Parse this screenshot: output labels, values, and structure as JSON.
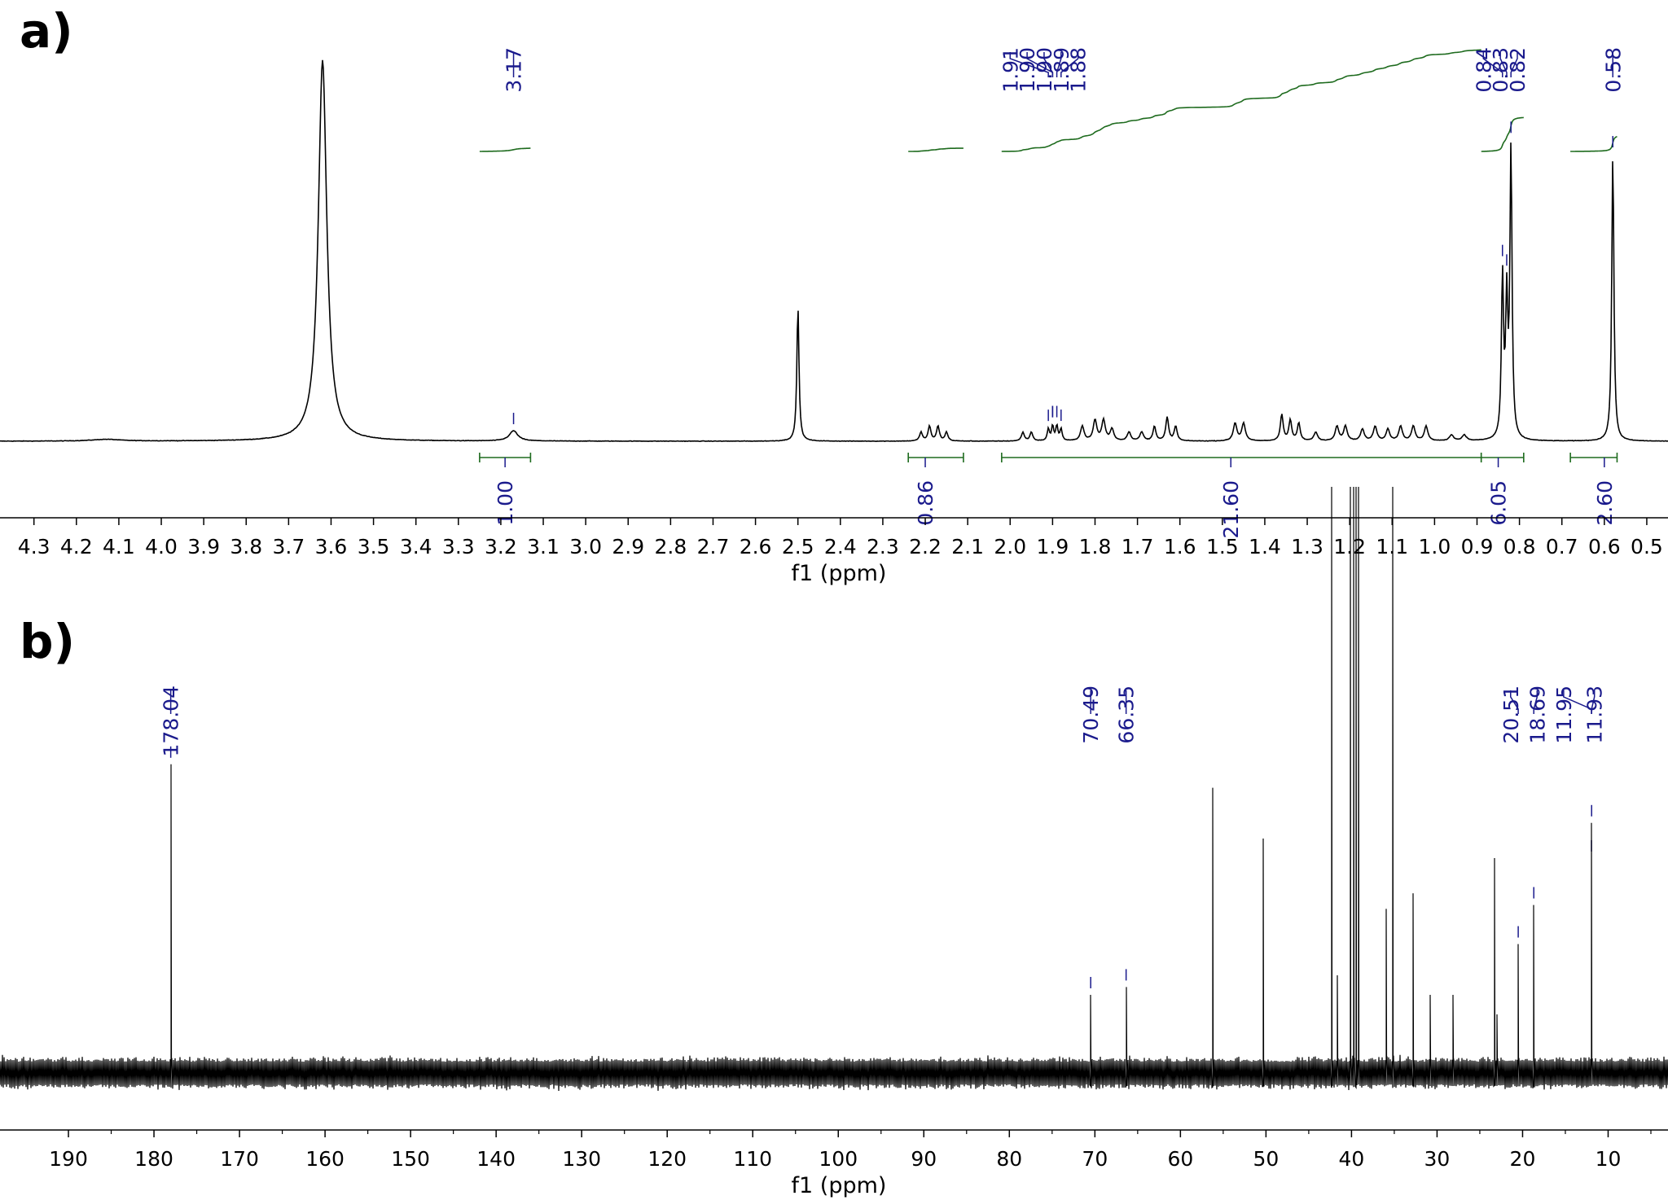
{
  "figure": {
    "colors": {
      "spectrum": "#000000",
      "peak_label": "#1a1a8c",
      "integral": "#1e6b1e"
    }
  },
  "chart_data": [
    {
      "type": "line",
      "panel_label": "a)",
      "xlabel": "f1 (ppm)",
      "ylabel": "",
      "xlim": [
        4.38,
        0.45
      ],
      "x_reversed": true,
      "ticks": [
        4.3,
        4.2,
        4.1,
        4.0,
        3.9,
        3.8,
        3.7,
        3.6,
        3.5,
        3.4,
        3.3,
        3.2,
        3.1,
        3.0,
        2.9,
        2.8,
        2.7,
        2.6,
        2.5,
        2.4,
        2.3,
        2.2,
        2.1,
        2.0,
        1.9,
        1.8,
        1.7,
        1.6,
        1.5,
        1.4,
        1.3,
        1.2,
        1.1,
        1.0,
        0.9,
        0.8,
        0.7,
        0.6,
        0.5
      ],
      "tick_labels": [
        "4.3",
        "4.2",
        "4.1",
        "4.0",
        "3.9",
        "3.8",
        "3.7",
        "3.6",
        "3.5",
        "3.4",
        "3.3",
        "3.2",
        "3.1",
        "3.0",
        "2.9",
        "2.8",
        "2.7",
        "2.6",
        "2.5",
        "2.4",
        "2.3",
        "2.2",
        "2.1",
        "2.0",
        "1.9",
        "1.8",
        "1.7",
        "1.6",
        "1.5",
        "1.4",
        "1.3",
        "1.2",
        "1.1",
        "1.0",
        "0.9",
        "0.8",
        "0.7",
        "0.6",
        "0.5"
      ],
      "peaks": [
        {
          "shift": 3.62,
          "height": 1.3,
          "width": 0.012
        },
        {
          "shift": 4.13,
          "height": 0.006,
          "width": 0.04
        },
        {
          "shift": 3.17,
          "height": 0.035,
          "width": 0.012
        },
        {
          "shift": 2.5,
          "height": 0.46,
          "width": 0.003
        },
        {
          "shift": 2.21,
          "height": 0.03,
          "width": 0.004
        },
        {
          "shift": 2.19,
          "height": 0.05,
          "width": 0.004
        },
        {
          "shift": 2.17,
          "height": 0.05,
          "width": 0.004
        },
        {
          "shift": 2.15,
          "height": 0.03,
          "width": 0.004
        },
        {
          "shift": 1.97,
          "height": 0.03,
          "width": 0.004
        },
        {
          "shift": 1.95,
          "height": 0.03,
          "width": 0.004
        },
        {
          "shift": 1.91,
          "height": 0.04,
          "width": 0.003
        },
        {
          "shift": 1.9,
          "height": 0.05,
          "width": 0.003
        },
        {
          "shift": 1.89,
          "height": 0.05,
          "width": 0.003
        },
        {
          "shift": 1.88,
          "height": 0.04,
          "width": 0.003
        },
        {
          "shift": 1.83,
          "height": 0.05,
          "width": 0.005
        },
        {
          "shift": 1.8,
          "height": 0.07,
          "width": 0.005
        },
        {
          "shift": 1.78,
          "height": 0.07,
          "width": 0.005
        },
        {
          "shift": 1.76,
          "height": 0.04,
          "width": 0.005
        },
        {
          "shift": 1.72,
          "height": 0.03,
          "width": 0.005
        },
        {
          "shift": 1.69,
          "height": 0.03,
          "width": 0.005
        },
        {
          "shift": 1.66,
          "height": 0.05,
          "width": 0.004
        },
        {
          "shift": 1.63,
          "height": 0.08,
          "width": 0.004
        },
        {
          "shift": 1.61,
          "height": 0.05,
          "width": 0.004
        },
        {
          "shift": 1.47,
          "height": 0.06,
          "width": 0.005
        },
        {
          "shift": 1.45,
          "height": 0.06,
          "width": 0.005
        },
        {
          "shift": 1.36,
          "height": 0.09,
          "width": 0.004
        },
        {
          "shift": 1.34,
          "height": 0.07,
          "width": 0.004
        },
        {
          "shift": 1.32,
          "height": 0.06,
          "width": 0.004
        },
        {
          "shift": 1.28,
          "height": 0.03,
          "width": 0.005
        },
        {
          "shift": 1.23,
          "height": 0.05,
          "width": 0.005
        },
        {
          "shift": 1.21,
          "height": 0.05,
          "width": 0.005
        },
        {
          "shift": 1.17,
          "height": 0.04,
          "width": 0.005
        },
        {
          "shift": 1.14,
          "height": 0.05,
          "width": 0.005
        },
        {
          "shift": 1.11,
          "height": 0.04,
          "width": 0.005
        },
        {
          "shift": 1.08,
          "height": 0.05,
          "width": 0.005
        },
        {
          "shift": 1.05,
          "height": 0.05,
          "width": 0.005
        },
        {
          "shift": 1.02,
          "height": 0.05,
          "width": 0.005
        },
        {
          "shift": 0.96,
          "height": 0.02,
          "width": 0.006
        },
        {
          "shift": 0.93,
          "height": 0.02,
          "width": 0.006
        },
        {
          "shift": 0.84,
          "height": 0.55,
          "width": 0.003
        },
        {
          "shift": 0.83,
          "height": 0.45,
          "width": 0.003
        },
        {
          "shift": 0.82,
          "height": 0.98,
          "width": 0.003
        },
        {
          "shift": 0.58,
          "height": 0.98,
          "width": 0.003
        }
      ],
      "peak_labels": [
        {
          "shift": 3.17,
          "text": "3.17",
          "label_pos": 3.17
        },
        {
          "shift": 1.91,
          "text": "1.91",
          "label_pos": 2.0
        },
        {
          "shift": 1.9,
          "text": "1.90",
          "label_pos": 1.96
        },
        {
          "shift": 1.9,
          "text": "1.90",
          "label_pos": 1.92
        },
        {
          "shift": 1.89,
          "text": "1.89",
          "label_pos": 1.88
        },
        {
          "shift": 1.88,
          "text": "1.88",
          "label_pos": 1.84
        },
        {
          "shift": 0.84,
          "text": "0.84",
          "label_pos": 0.885
        },
        {
          "shift": 0.83,
          "text": "0.83",
          "label_pos": 0.845
        },
        {
          "shift": 0.82,
          "text": "0.82",
          "label_pos": 0.805
        },
        {
          "shift": 0.58,
          "text": "0.58",
          "label_pos": 0.58
        }
      ],
      "integrals": [
        {
          "from": 3.25,
          "to": 3.13,
          "value": "1.00",
          "label_pos": 3.19,
          "curve_level": 0.0,
          "curve_rise": 0.03
        },
        {
          "from": 2.24,
          "to": 2.11,
          "value": "0.86",
          "label_pos": 2.2,
          "curve_level": 0.0,
          "curve_rise": 0.03
        },
        {
          "from": 2.02,
          "to": 0.89,
          "value": "21.60",
          "label_pos": 1.48,
          "curve_level": 0.0,
          "curve_rise": 0.96
        },
        {
          "from": 0.89,
          "to": 0.79,
          "value": "6.05",
          "label_pos": 0.85,
          "curve_level": 0.0,
          "curve_rise": 0.32
        },
        {
          "from": 0.68,
          "to": 0.57,
          "value": "2.60",
          "label_pos": 0.6,
          "curve_level": 0.0,
          "curve_rise": 0.14
        }
      ]
    },
    {
      "type": "line",
      "panel_label": "b)",
      "xlabel": "f1 (ppm)",
      "ylabel": "",
      "xlim": [
        198,
        3
      ],
      "x_reversed": true,
      "ticks": [
        190,
        180,
        170,
        160,
        150,
        140,
        130,
        120,
        110,
        100,
        90,
        80,
        70,
        60,
        50,
        40,
        30,
        20,
        10
      ],
      "tick_labels": [
        "190",
        "180",
        "170",
        "160",
        "150",
        "140",
        "130",
        "120",
        "110",
        "100",
        "90",
        "80",
        "70",
        "60",
        "50",
        "40",
        "30",
        "20",
        "10"
      ],
      "peaks": [
        {
          "shift": 178.04,
          "height": 0.79
        },
        {
          "shift": 70.49,
          "height": 0.2
        },
        {
          "shift": 66.35,
          "height": 0.22
        },
        {
          "shift": 56.2,
          "height": 0.73
        },
        {
          "shift": 50.3,
          "height": 0.6
        },
        {
          "shift": 42.3,
          "height": 1.5
        },
        {
          "shift": 41.7,
          "height": 0.25
        },
        {
          "shift": 40.1,
          "height": 1.5
        },
        {
          "shift": 39.8,
          "height": 1.5
        },
        {
          "shift": 39.5,
          "height": 1.5
        },
        {
          "shift": 39.2,
          "height": 1.5
        },
        {
          "shift": 35.9,
          "height": 0.42
        },
        {
          "shift": 35.2,
          "height": 1.5
        },
        {
          "shift": 32.8,
          "height": 0.46
        },
        {
          "shift": 30.8,
          "height": 0.2
        },
        {
          "shift": 28.1,
          "height": 0.2
        },
        {
          "shift": 23.3,
          "height": 0.55
        },
        {
          "shift": 23.0,
          "height": 0.15
        },
        {
          "shift": 20.51,
          "height": 0.33
        },
        {
          "shift": 18.69,
          "height": 0.43
        },
        {
          "shift": 11.95,
          "height": 0.55
        },
        {
          "shift": 11.93,
          "height": 0.64
        }
      ],
      "peak_labels": [
        {
          "shift": 178.04,
          "text": "178.04",
          "label_pos": 178.04
        },
        {
          "shift": 70.49,
          "text": "70.49",
          "label_pos": 70.49
        },
        {
          "shift": 66.35,
          "text": "66.35",
          "label_pos": 66.35
        },
        {
          "shift": 20.51,
          "text": "20.51",
          "label_pos": 21.4
        },
        {
          "shift": 18.69,
          "text": "18.69",
          "label_pos": 18.3
        },
        {
          "shift": 11.95,
          "text": "11.95",
          "label_pos": 15.2
        },
        {
          "shift": 11.93,
          "text": "11.93",
          "label_pos": 11.6
        }
      ]
    }
  ]
}
